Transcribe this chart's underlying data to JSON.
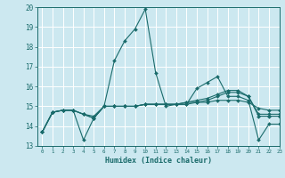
{
  "title": "",
  "xlabel": "Humidex (Indice chaleur)",
  "xlim": [
    -0.5,
    23
  ],
  "ylim": [
    13,
    20
  ],
  "yticks": [
    13,
    14,
    15,
    16,
    17,
    18,
    19,
    20
  ],
  "xticks": [
    0,
    1,
    2,
    3,
    4,
    5,
    6,
    7,
    8,
    9,
    10,
    11,
    12,
    13,
    14,
    15,
    16,
    17,
    18,
    19,
    20,
    21,
    22,
    23
  ],
  "background_color": "#cce8f0",
  "grid_color": "#ffffff",
  "line_color": "#1a6b6b",
  "lines": [
    [
      13.7,
      14.7,
      14.8,
      14.8,
      13.3,
      14.4,
      15.0,
      17.3,
      18.3,
      18.9,
      19.9,
      16.7,
      15.0,
      15.1,
      15.1,
      15.9,
      16.2,
      16.5,
      15.5,
      15.5,
      15.3,
      13.3,
      14.1,
      14.1
    ],
    [
      13.7,
      14.7,
      14.8,
      14.8,
      14.6,
      14.4,
      15.0,
      15.0,
      15.0,
      15.0,
      15.1,
      15.1,
      15.1,
      15.1,
      15.1,
      15.2,
      15.2,
      15.3,
      15.3,
      15.3,
      15.2,
      14.9,
      14.8,
      14.8
    ],
    [
      13.7,
      14.7,
      14.8,
      14.8,
      14.6,
      14.4,
      15.0,
      15.0,
      15.0,
      15.0,
      15.1,
      15.1,
      15.1,
      15.1,
      15.2,
      15.2,
      15.3,
      15.5,
      15.7,
      15.7,
      15.5,
      14.6,
      14.6,
      14.6
    ],
    [
      13.7,
      14.7,
      14.8,
      14.8,
      14.6,
      14.5,
      15.0,
      15.0,
      15.0,
      15.0,
      15.1,
      15.1,
      15.1,
      15.1,
      15.2,
      15.3,
      15.4,
      15.6,
      15.8,
      15.8,
      15.5,
      14.5,
      14.5,
      14.5
    ]
  ],
  "marker": "D",
  "markersize": 2.0,
  "linewidth": 0.8
}
